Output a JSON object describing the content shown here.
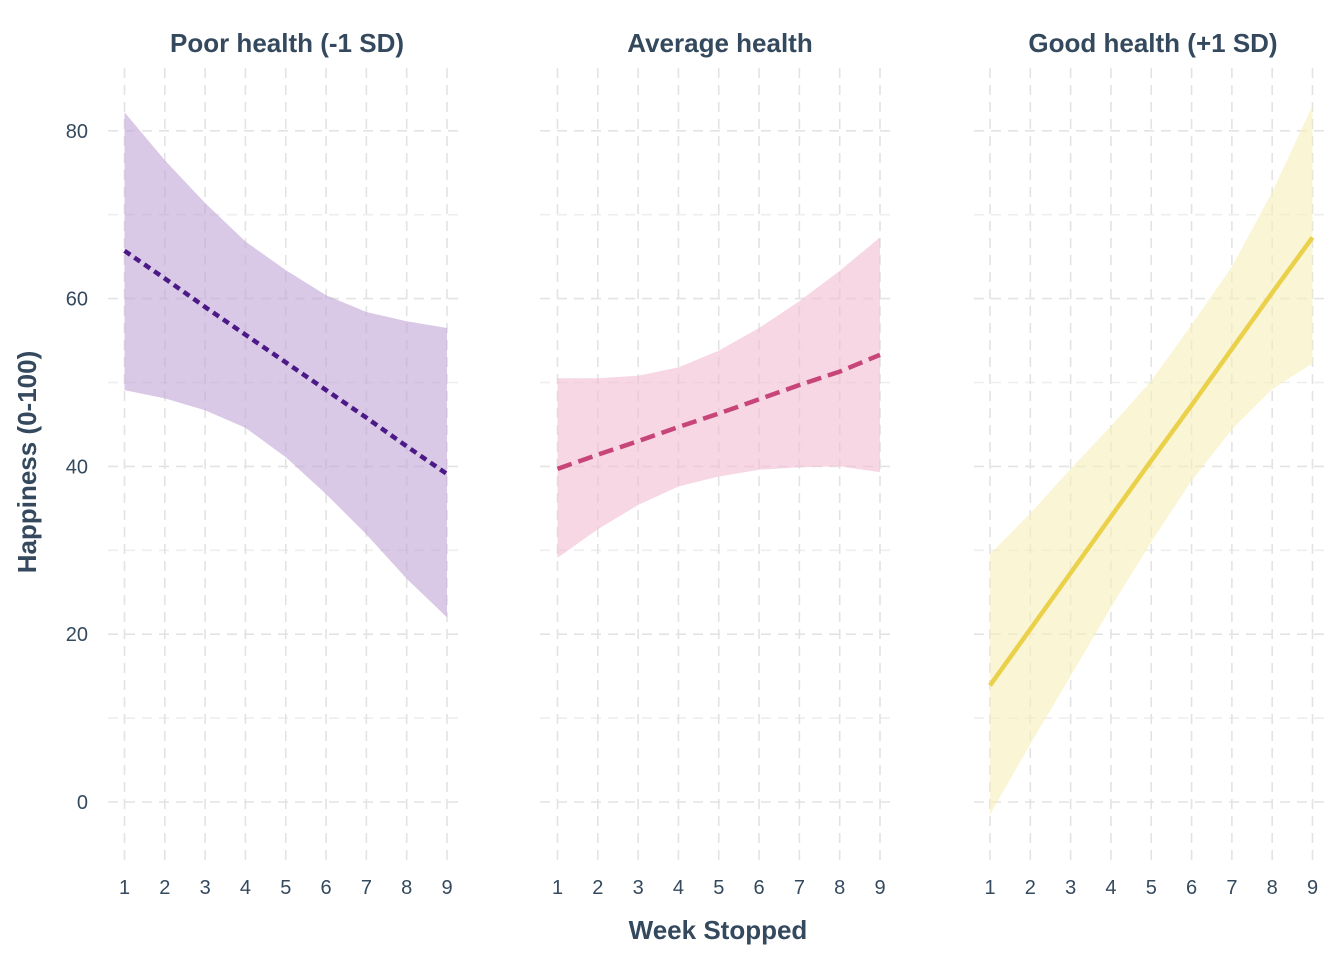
{
  "chart_data": {
    "type": "line",
    "facets": true,
    "xlabel": "Week Stopped",
    "ylabel": "Happiness (0-100)",
    "x": [
      1,
      2,
      3,
      4,
      5,
      6,
      7,
      8,
      9
    ],
    "xticks": [
      "1",
      "2",
      "3",
      "4",
      "5",
      "6",
      "7",
      "8",
      "9"
    ],
    "yticks": [
      "0",
      "20",
      "40",
      "60",
      "80"
    ],
    "ylim": [
      -4,
      87
    ],
    "xlim": [
      1,
      9
    ],
    "grid": true,
    "legend": "none",
    "panels": [
      {
        "title": "Poor health (-1 SD)",
        "color": "#4b1a87",
        "band_color": "#bfa3d5",
        "dash": "dotted",
        "x": [
          1,
          2,
          3,
          4,
          5,
          6,
          7,
          8,
          9
        ],
        "y": [
          65.7,
          62.4,
          59.0,
          55.7,
          52.4,
          49.1,
          45.8,
          42.4,
          39.1
        ],
        "lower": [
          49.1,
          48.1,
          46.7,
          44.6,
          41.1,
          36.7,
          31.9,
          26.6,
          22.0
        ],
        "upper": [
          82.2,
          76.5,
          71.4,
          66.8,
          63.4,
          60.4,
          58.4,
          57.3,
          56.5
        ]
      },
      {
        "title": "Average health",
        "color": "#c8457a",
        "band_color": "#f0bcd0",
        "dash": "dashed",
        "x": [
          1,
          2,
          3,
          4,
          5,
          6,
          7,
          8,
          9
        ],
        "y": [
          39.7,
          41.4,
          43.0,
          44.7,
          46.3,
          48.0,
          49.7,
          51.3,
          53.3
        ],
        "lower": [
          29.1,
          32.5,
          35.4,
          37.6,
          38.8,
          39.6,
          39.9,
          40.0,
          39.3
        ],
        "upper": [
          50.5,
          50.5,
          50.8,
          51.8,
          53.8,
          56.5,
          59.7,
          63.3,
          67.3
        ]
      },
      {
        "title": "Good health (+1 SD)",
        "color": "#ebd04a",
        "band_color": "#f7eeb9",
        "dash": "solid",
        "x": [
          1,
          2,
          3,
          4,
          5,
          6,
          7,
          8,
          9
        ],
        "y": [
          13.9,
          20.6,
          27.3,
          34.0,
          40.7,
          47.3,
          54.0,
          60.7,
          67.3
        ],
        "lower": [
          -1.5,
          6.9,
          15.0,
          23.2,
          31.0,
          38.3,
          44.4,
          49.2,
          52.3
        ],
        "upper": [
          29.6,
          34.4,
          39.7,
          44.8,
          50.2,
          56.9,
          63.8,
          72.7,
          83.0
        ]
      }
    ]
  }
}
